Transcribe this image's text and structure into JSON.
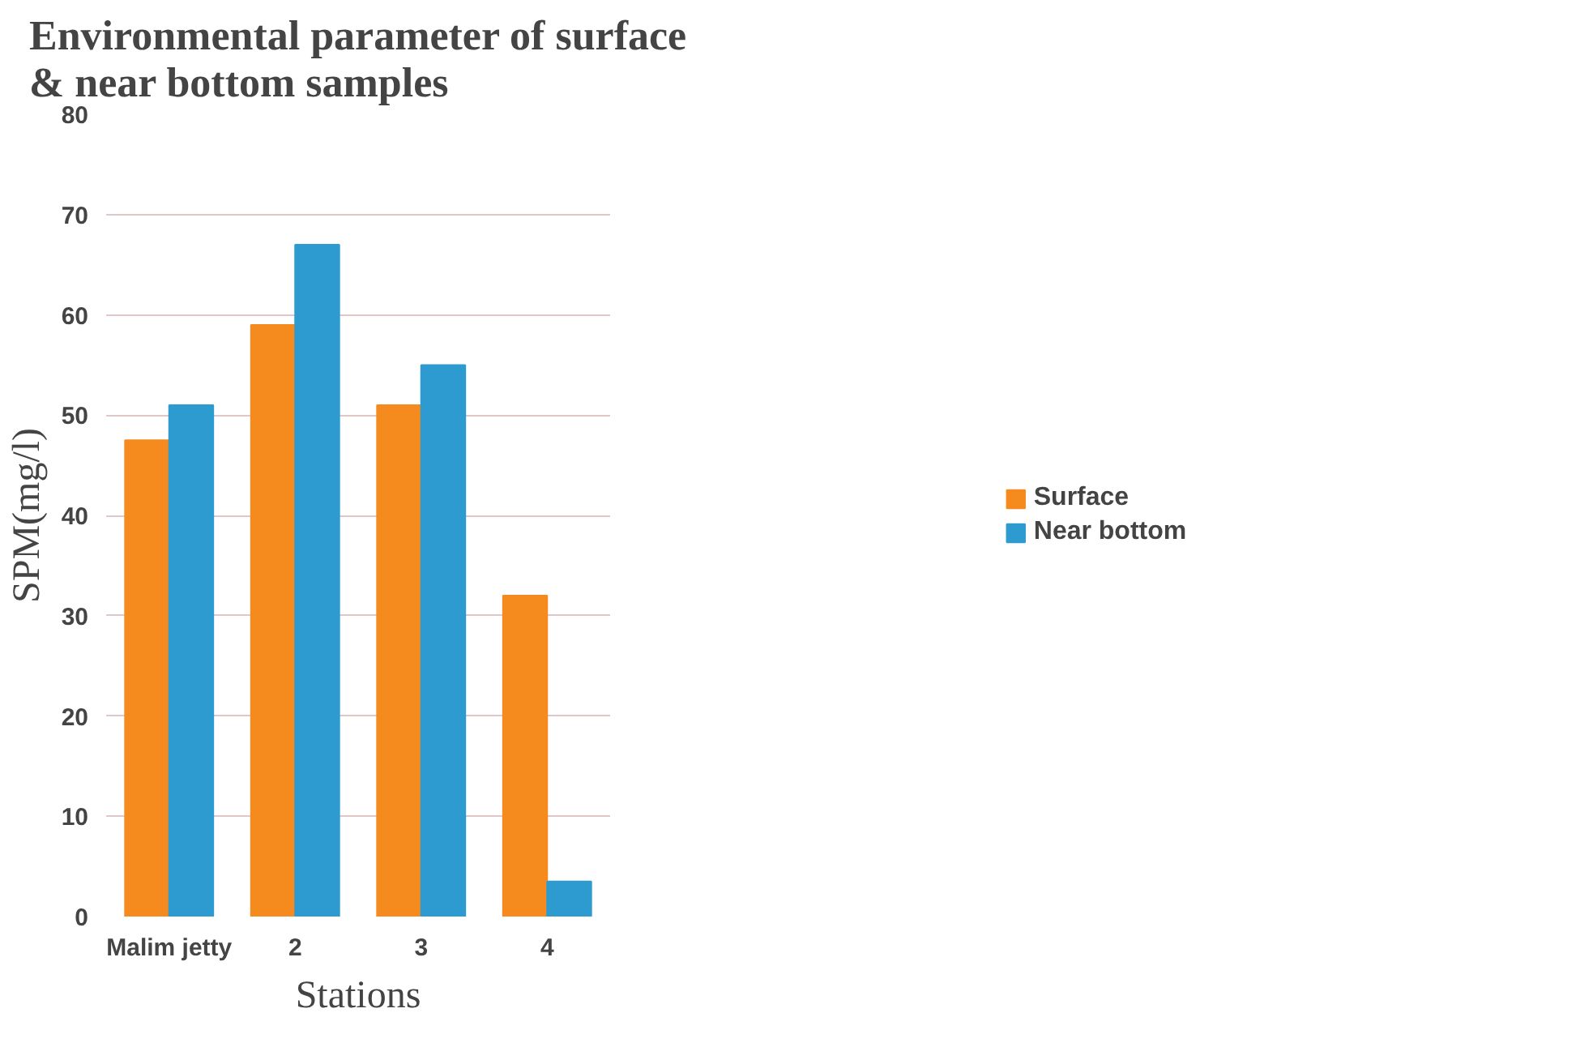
{
  "chart_data": {
    "type": "bar",
    "title": "Environmental parameter of surface & near bottom samples",
    "xlabel": "Stations",
    "ylabel": "SPM(mg/l)",
    "categories": [
      "Malim jetty",
      "2",
      "3",
      "4"
    ],
    "series": [
      {
        "name": "Surface",
        "color": "#f58a1f",
        "values": [
          47.5,
          59,
          51,
          32
        ]
      },
      {
        "name": "Near bottom",
        "color": "#2e9bd0",
        "values": [
          51,
          67,
          55,
          3.5
        ]
      }
    ],
    "ylim": [
      0,
      80
    ],
    "yticks": [
      0,
      10,
      20,
      30,
      40,
      50,
      60,
      70,
      80
    ],
    "grid": "y",
    "legend": "right"
  }
}
